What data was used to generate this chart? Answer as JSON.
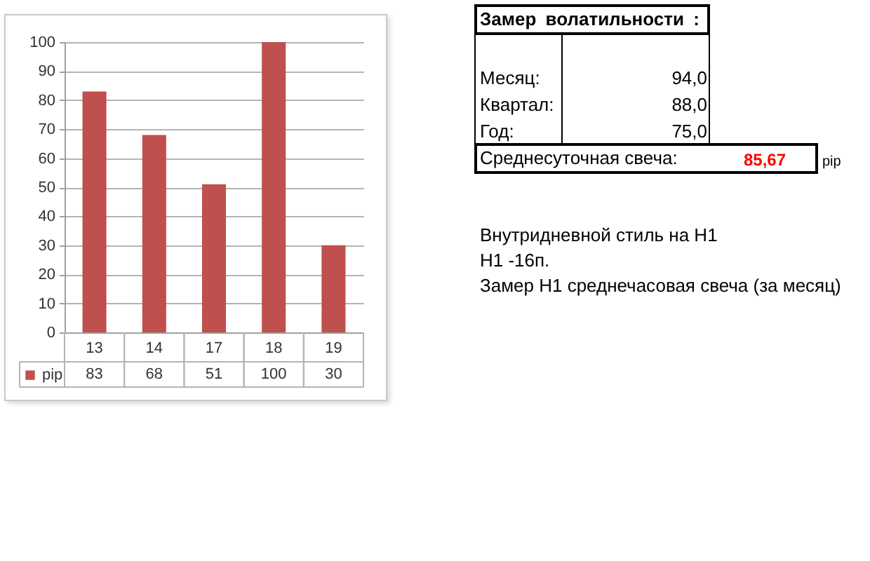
{
  "chart_data": [
    {
      "type": "bar",
      "categories": [
        "13",
        "14",
        "17",
        "18",
        "19"
      ],
      "series": [
        {
          "name": "pip",
          "color": "#c0504d",
          "values": [
            83,
            68,
            51,
            100,
            30
          ]
        }
      ],
      "ylim": [
        0,
        100
      ],
      "yticks": [
        0,
        10,
        20,
        30,
        40,
        50,
        60,
        70,
        80,
        90,
        100
      ],
      "grid": "y",
      "legend": "bottom left",
      "data_labels": true
    },
    {
      "type": "other",
      "title": "Замер волатильности :",
      "annotations": [
        "Месяц:",
        "94,0",
        "Квартал:",
        "88,0",
        "Год:",
        "75,0",
        "Среднесуточная свеча:",
        "85,67",
        "pip",
        "Внутридневной стиль на H1",
        "H1 -16п.",
        "Замер H1 среднечасовая свеча (за месяц)"
      ]
    }
  ]
}
